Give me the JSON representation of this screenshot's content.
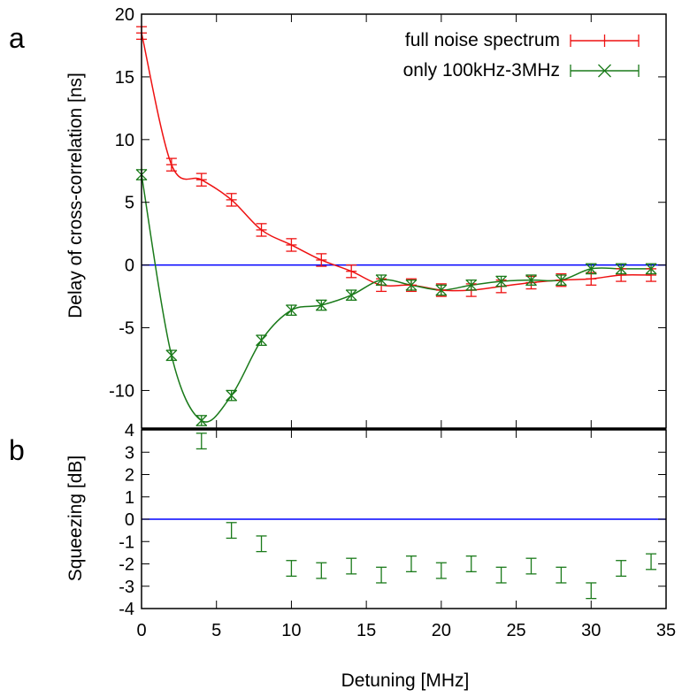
{
  "figure": {
    "panel_a_label": "a",
    "panel_b_label": "b",
    "xlabel": "Detuning [MHz]"
  },
  "chart_data": [
    {
      "type": "line",
      "panel": "a",
      "ylabel": "Delay of cross-correlation [ns]",
      "xlim": [
        0,
        35
      ],
      "ylim": [
        -13,
        20
      ],
      "x_ticks": [
        0,
        5,
        10,
        15,
        20,
        25,
        30,
        35
      ],
      "y_ticks": [
        -10,
        -5,
        0,
        5,
        10,
        15,
        20
      ],
      "grid": false,
      "legend_position": "top-right",
      "reference_line": {
        "y": 0,
        "color": "#0000ff"
      },
      "series": [
        {
          "name": "full noise spectrum",
          "color": "#ee1111",
          "marker": "plus",
          "x": [
            0,
            2,
            4,
            6,
            8,
            10,
            12,
            14,
            16,
            18,
            20,
            22,
            24,
            26,
            28,
            30,
            32,
            34
          ],
          "y": [
            18.5,
            8.0,
            6.8,
            5.2,
            2.8,
            1.6,
            0.4,
            -0.5,
            -1.6,
            -1.6,
            -2.0,
            -2.0,
            -1.7,
            -1.4,
            -1.2,
            -1.1,
            -0.8,
            -0.8
          ],
          "err": [
            0.5,
            0.5,
            0.5,
            0.5,
            0.5,
            0.5,
            0.5,
            0.5,
            0.5,
            0.5,
            0.5,
            0.5,
            0.5,
            0.5,
            0.5,
            0.5,
            0.5,
            0.5
          ]
        },
        {
          "name": "only 100kHz-3MHz",
          "color": "#1a7a1a",
          "marker": "x",
          "x": [
            0,
            2,
            4,
            6,
            8,
            10,
            12,
            14,
            16,
            18,
            20,
            22,
            24,
            26,
            28,
            30,
            32,
            34
          ],
          "y": [
            7.2,
            -7.2,
            -12.4,
            -10.4,
            -6.0,
            -3.6,
            -3.2,
            -2.4,
            -1.2,
            -1.6,
            -2.0,
            -1.6,
            -1.3,
            -1.2,
            -1.2,
            -0.3,
            -0.3,
            -0.3
          ],
          "err": [
            0.4,
            0.4,
            0.4,
            0.4,
            0.4,
            0.4,
            0.4,
            0.4,
            0.4,
            0.4,
            0.4,
            0.4,
            0.4,
            0.4,
            0.4,
            0.4,
            0.4,
            0.4
          ]
        }
      ]
    },
    {
      "type": "scatter",
      "panel": "b",
      "ylabel": "Squeezing [dB]",
      "xlim": [
        0,
        35
      ],
      "ylim": [
        -4,
        4
      ],
      "x_ticks": [
        0,
        5,
        10,
        15,
        20,
        25,
        30,
        35
      ],
      "y_ticks": [
        -4,
        -3,
        -2,
        -1,
        0,
        1,
        2,
        3,
        4
      ],
      "grid": false,
      "reference_line": {
        "y": 0,
        "color": "#0000ff"
      },
      "series": [
        {
          "color": "#1a7a1a",
          "marker": "errorbar",
          "x": [
            4,
            6,
            8,
            10,
            12,
            14,
            16,
            18,
            20,
            22,
            24,
            26,
            28,
            30,
            32,
            34
          ],
          "y": [
            3.5,
            -0.5,
            -1.1,
            -2.2,
            -2.3,
            -2.1,
            -2.5,
            -2.0,
            -2.3,
            -2.0,
            -2.5,
            -2.1,
            -2.5,
            -3.2,
            -2.2,
            -1.9
          ],
          "err": [
            0.35,
            0.35,
            0.35,
            0.35,
            0.35,
            0.35,
            0.35,
            0.35,
            0.35,
            0.35,
            0.35,
            0.35,
            0.35,
            0.35,
            0.35,
            0.35
          ]
        }
      ]
    }
  ]
}
